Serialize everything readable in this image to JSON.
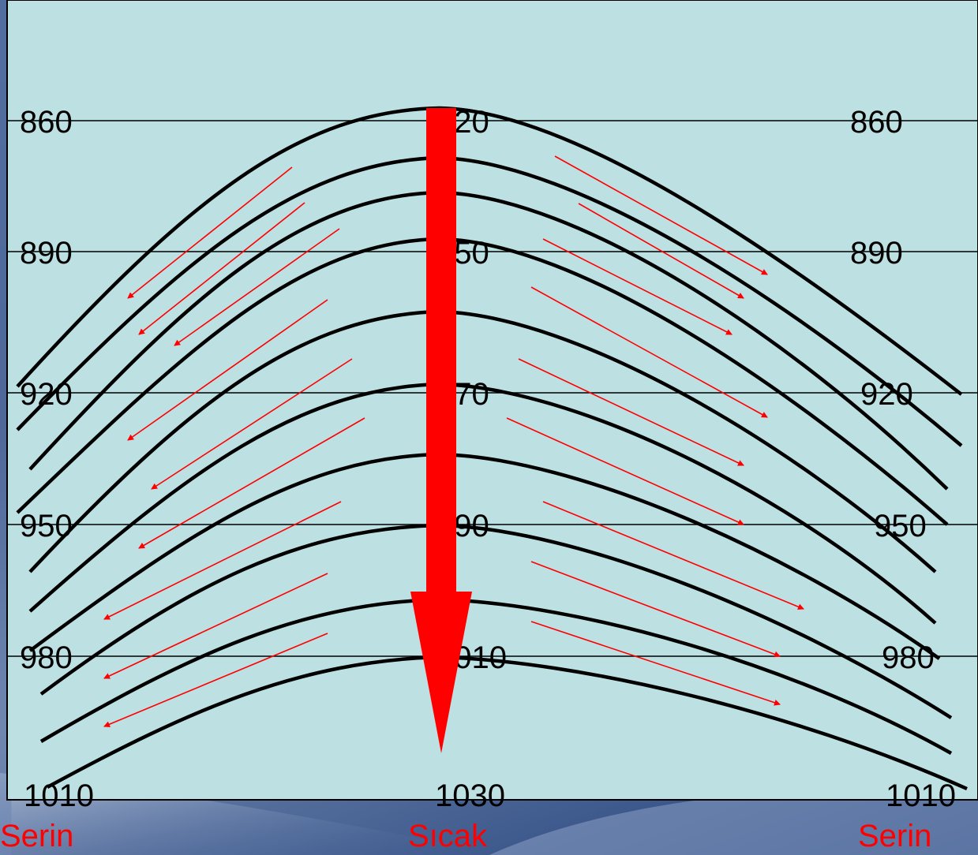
{
  "diagram": {
    "colors": {
      "panel": "#bde0e3",
      "panel_border": "#000000",
      "isobar": "#000000",
      "wind": "#ff0000",
      "subsidence": "#ff0000",
      "label": "#000000",
      "temperature": "#ff0000"
    },
    "left_labels": [
      "860",
      "890",
      "920",
      "950",
      "980",
      "1010"
    ],
    "center_labels": [
      "920",
      "950",
      "970",
      "990",
      "1010",
      "1030"
    ],
    "right_labels": [
      "860",
      "890",
      "920",
      "950",
      "980",
      "1010"
    ],
    "temperature_labels": {
      "left": "Serin",
      "center": "Sıcak",
      "right": "Serin"
    }
  }
}
